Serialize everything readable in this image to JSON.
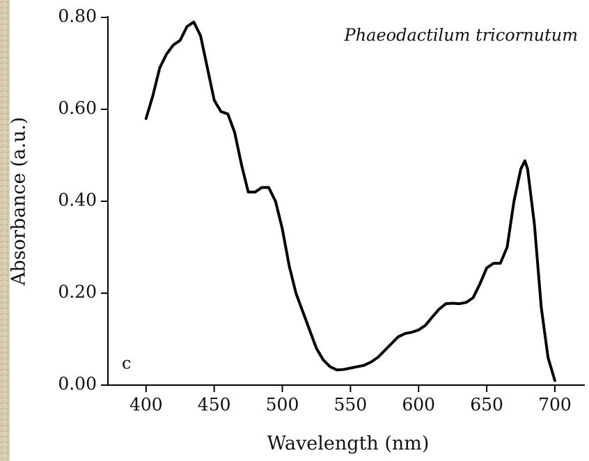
{
  "chart_data": {
    "type": "line",
    "xlabel": "Wavelength (nm)",
    "ylabel": "Absorbance (a.u.)",
    "annotations": [
      "Phaeodactilum tricornutum",
      "c"
    ],
    "color": "#000000",
    "x": [
      400,
      405,
      410,
      415,
      420,
      425,
      430,
      435,
      440,
      445,
      450,
      455,
      460,
      465,
      470,
      475,
      480,
      485,
      490,
      495,
      500,
      505,
      510,
      515,
      520,
      525,
      530,
      535,
      540,
      545,
      550,
      555,
      560,
      565,
      570,
      575,
      580,
      585,
      590,
      595,
      600,
      605,
      610,
      615,
      620,
      625,
      630,
      635,
      640,
      645,
      650,
      655,
      660,
      665,
      670,
      675,
      678,
      680,
      685,
      690,
      695,
      700
    ],
    "values": [
      0.58,
      0.63,
      0.69,
      0.72,
      0.74,
      0.75,
      0.78,
      0.79,
      0.76,
      0.69,
      0.62,
      0.595,
      0.59,
      0.55,
      0.48,
      0.42,
      0.42,
      0.43,
      0.43,
      0.4,
      0.34,
      0.26,
      0.2,
      0.16,
      0.12,
      0.08,
      0.055,
      0.04,
      0.033,
      0.034,
      0.037,
      0.04,
      0.043,
      0.05,
      0.06,
      0.075,
      0.09,
      0.105,
      0.112,
      0.115,
      0.12,
      0.13,
      0.148,
      0.165,
      0.177,
      0.178,
      0.177,
      0.18,
      0.19,
      0.22,
      0.255,
      0.265,
      0.265,
      0.3,
      0.4,
      0.47,
      0.488,
      0.47,
      0.35,
      0.17,
      0.06,
      0.01
    ],
    "xlim": [
      372,
      722
    ],
    "ylim": [
      0,
      0.8
    ],
    "xticks": [
      400,
      450,
      500,
      550,
      600,
      650,
      700
    ],
    "yticks": [
      {
        "value": 0,
        "label": "0.00"
      },
      {
        "value": 0.2,
        "label": "0.20"
      },
      {
        "value": 0.4,
        "label": "0.40"
      },
      {
        "value": 0.6,
        "label": "0.60"
      },
      {
        "value": 0.8,
        "label": "0.80"
      }
    ],
    "grid": false
  }
}
